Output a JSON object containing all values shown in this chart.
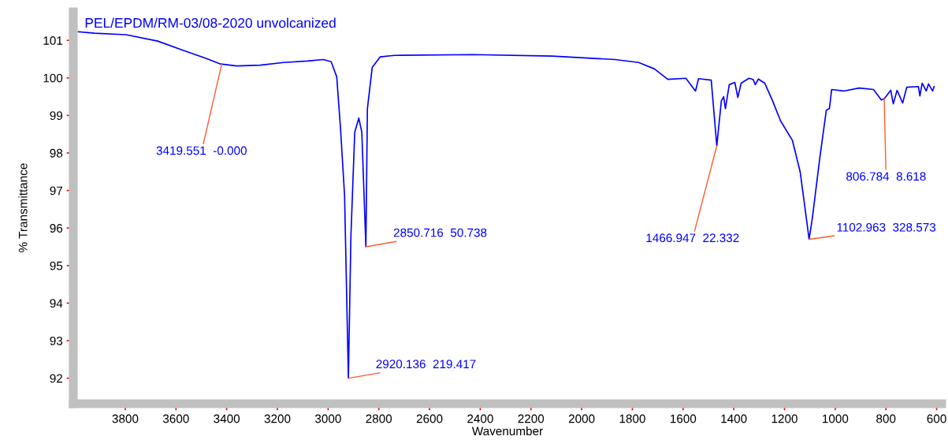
{
  "chart_data": {
    "type": "line",
    "title": "PEL/EPDM/RM-03/08-2020 unvolcanized",
    "xlabel": "Wavenumber",
    "ylabel": "% Transmittance",
    "x": [
      3985,
      3921,
      3797,
      3672,
      3579,
      3486,
      3424,
      3361,
      3268,
      3175,
      3082,
      3019,
      2988,
      2966,
      2951,
      2935,
      2920,
      2910,
      2895,
      2879,
      2867,
      2851,
      2845,
      2826,
      2795,
      2739,
      2428,
      2117,
      1869,
      1775,
      1713,
      1660,
      1589,
      1551,
      1539,
      1489,
      1467,
      1449,
      1440,
      1433,
      1418,
      1396,
      1384,
      1371,
      1340,
      1324,
      1315,
      1303,
      1278,
      1247,
      1216,
      1169,
      1138,
      1113,
      1103,
      1091,
      1060,
      1035,
      1023,
      1014,
      967,
      905,
      849,
      818,
      806,
      781,
      771,
      756,
      734,
      718,
      672,
      666,
      657,
      641,
      632,
      616,
      610
    ],
    "series": [
      {
        "color": "#0000ff",
        "values": [
          101.23,
          101.19,
          101.15,
          100.98,
          100.75,
          100.53,
          100.37,
          100.32,
          100.34,
          100.41,
          100.45,
          100.49,
          100.43,
          100.03,
          98.65,
          96.86,
          92.0,
          95.8,
          98.55,
          98.93,
          98.55,
          95.5,
          99.18,
          100.28,
          100.56,
          100.6,
          100.62,
          100.58,
          100.49,
          100.41,
          100.24,
          99.96,
          99.99,
          99.65,
          99.98,
          99.94,
          98.19,
          99.39,
          99.5,
          99.18,
          99.82,
          99.88,
          99.48,
          99.86,
          99.99,
          99.96,
          99.82,
          99.97,
          99.86,
          99.39,
          98.86,
          98.34,
          97.49,
          96.22,
          95.7,
          96.22,
          97.91,
          99.14,
          99.18,
          99.69,
          99.65,
          99.73,
          99.69,
          99.41,
          99.45,
          99.67,
          99.31,
          99.67,
          99.33,
          99.75,
          99.77,
          99.52,
          99.86,
          99.65,
          99.84,
          99.65,
          99.77
        ]
      }
    ],
    "xlim": [
      4005,
      580
    ],
    "ylim": [
      91.32,
      101.76
    ],
    "xticks": [
      3800,
      3600,
      3400,
      3200,
      3000,
      2800,
      2600,
      2400,
      2200,
      2000,
      1800,
      1600,
      1400,
      1200,
      1000,
      800,
      600
    ],
    "yticks": [
      92,
      93,
      94,
      95,
      96,
      97,
      98,
      99,
      100,
      101
    ],
    "grid": false,
    "legend": false,
    "marker": "none",
    "line_style": "solid",
    "annotations": [
      {
        "text": "3419.551  -0.000",
        "x": 3419.551,
        "y": 100.37
      },
      {
        "text": "2920.136  219.417",
        "x": 2920.136,
        "y": 92.0
      },
      {
        "text": "2850.716  50.738",
        "x": 2850.716,
        "y": 95.5
      },
      {
        "text": "1466.947  22.332",
        "x": 1466.947,
        "y": 98.19
      },
      {
        "text": "1102.963  328.573",
        "x": 1102.963,
        "y": 95.7
      },
      {
        "text": "806.784  8.618",
        "x": 806.784,
        "y": 99.45
      }
    ]
  }
}
